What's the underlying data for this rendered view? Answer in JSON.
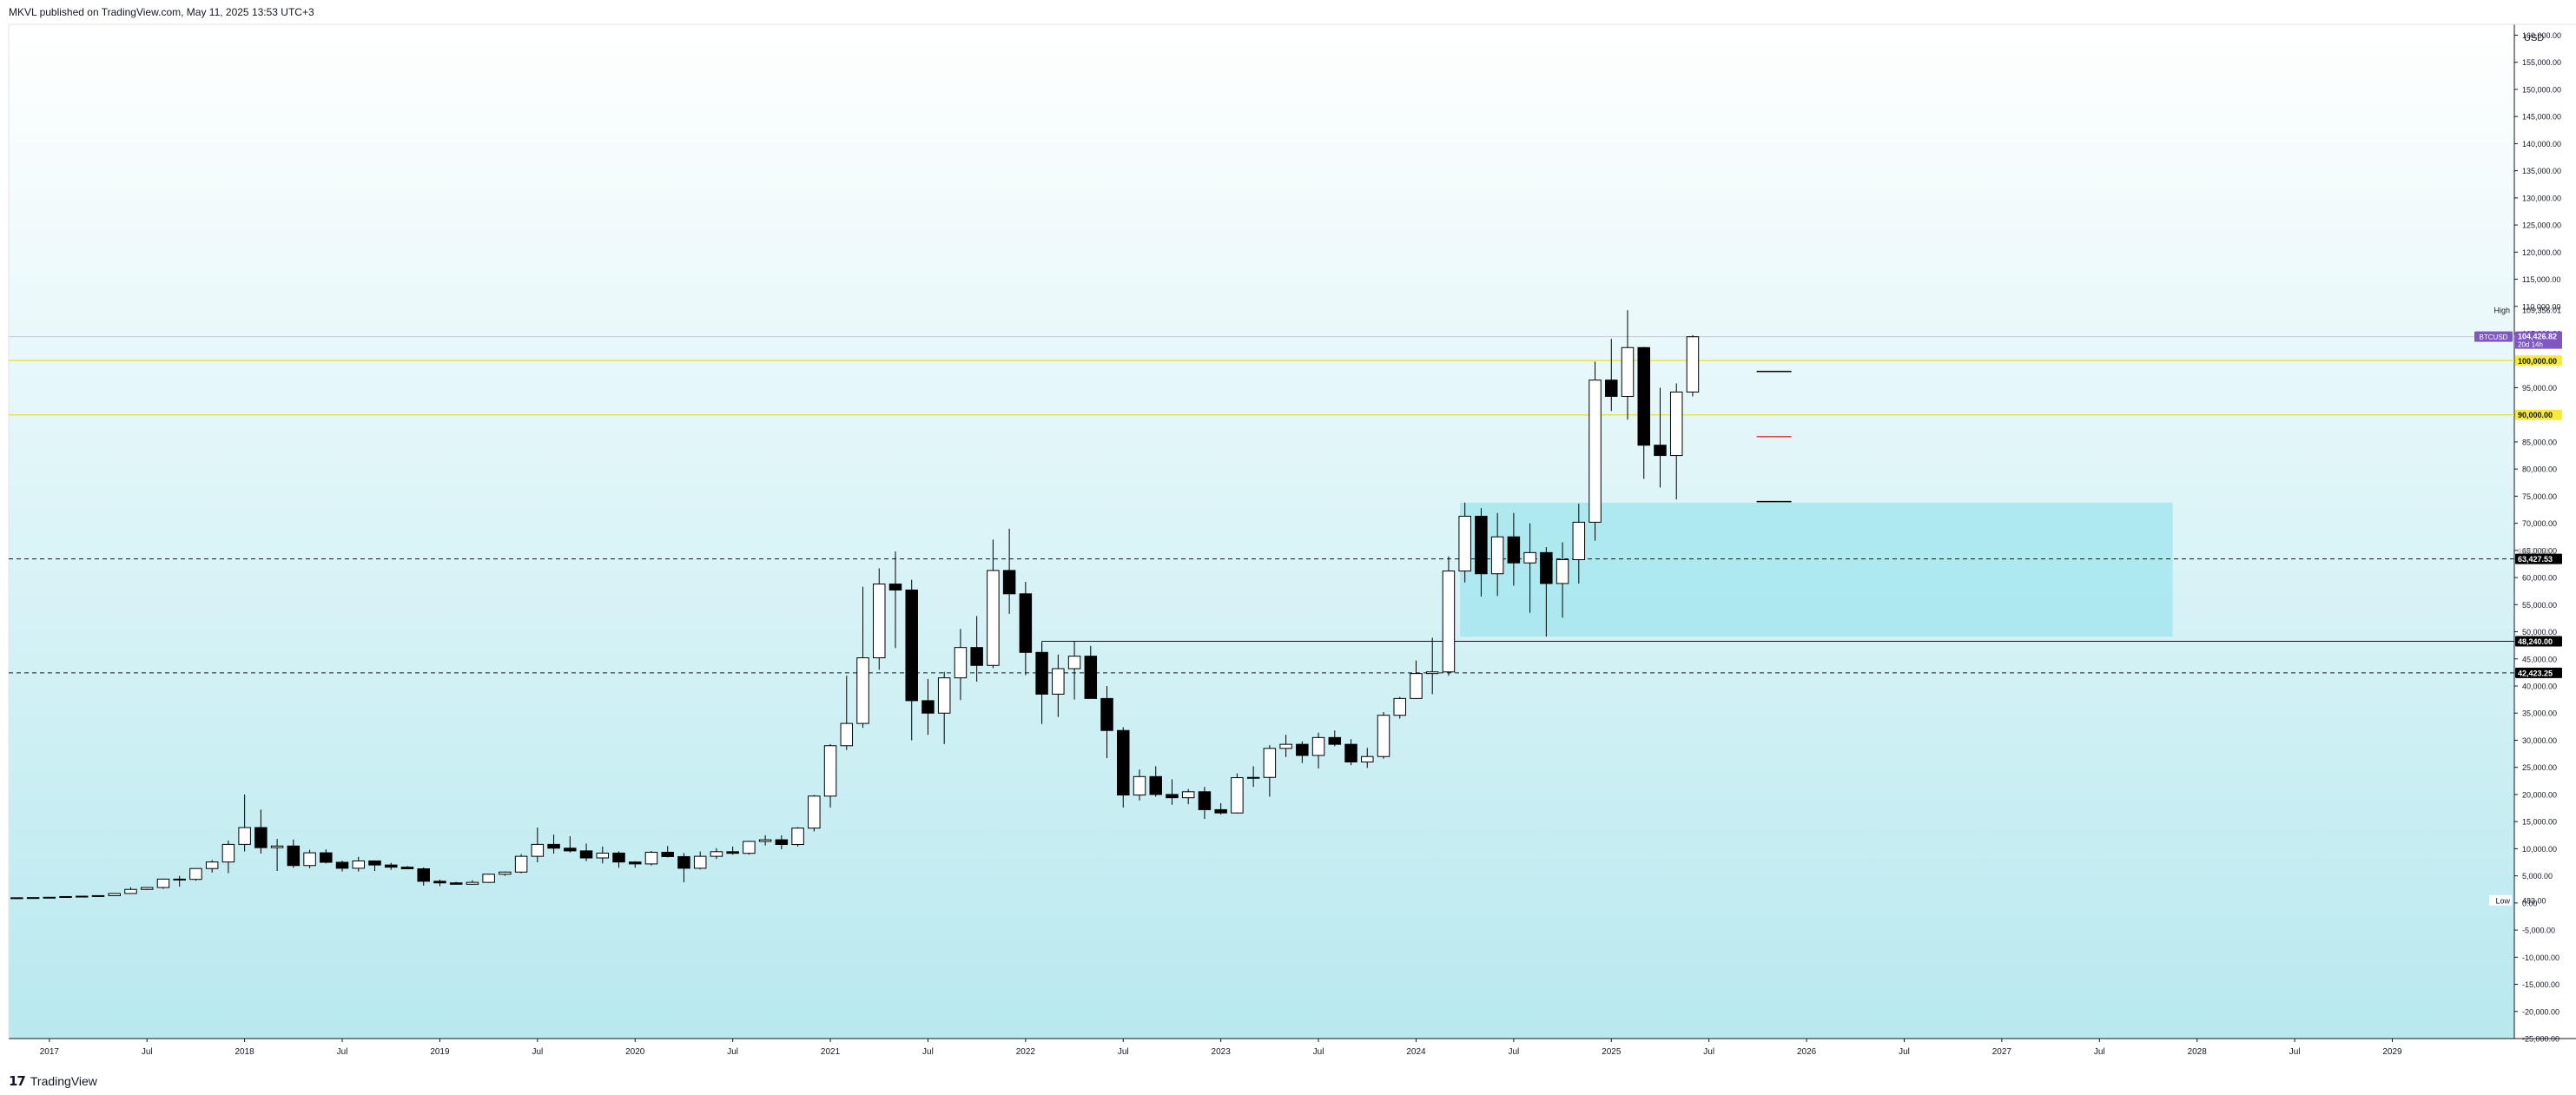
{
  "header": {
    "text": "MKVL published on TradingView.com, May 11, 2025 13:53 UTC+3"
  },
  "footer": {
    "brand": "TradingView",
    "logo_glyph": "17"
  },
  "colors": {
    "bg_top": "#ffffff",
    "bg_bottom": "#b8e9ef",
    "candle_up": "#ffffff",
    "candle_down": "#000000",
    "zone": "#a6e6ee",
    "yellow_line": "#f2e24a",
    "price_tag": "#7e57c2",
    "dark_tag": "#000000",
    "yellow_tag": "#f7ea3b",
    "target_red": "#e53935"
  },
  "chart_data": {
    "type": "candlestick",
    "currency": "USD",
    "ylim": [
      -25000,
      162000
    ],
    "y_ticks": [
      -25000,
      -20000,
      -15000,
      -10000,
      -5000,
      0,
      5000,
      10000,
      15000,
      20000,
      25000,
      30000,
      35000,
      40000,
      45000,
      50000,
      55000,
      60000,
      65000,
      70000,
      75000,
      80000,
      85000,
      90000,
      95000,
      100000,
      105000,
      110000,
      115000,
      120000,
      125000,
      130000,
      135000,
      140000,
      145000,
      150000,
      155000,
      160000
    ],
    "y_tick_labels": [
      "-25,000.00",
      "-20,000.00",
      "-15,000.00",
      "-10,000.00",
      "-5,000.00",
      "0.00",
      "5,000.00",
      "10,000.00",
      "15,000.00",
      "20,000.00",
      "25,000.00",
      "30,000.00",
      "35,000.00",
      "40,000.00",
      "45,000.00",
      "50,000.00",
      "55,000.00",
      "60,000.00",
      "65,000.00",
      "70,000.00",
      "75,000.00",
      "80,000.00",
      "85,000.00",
      "90,000.00",
      "95,000.00",
      "100,000.00",
      "105,000.00",
      "110,000.00",
      "115,000.00",
      "120,000.00",
      "125,000.00",
      "130,000.00",
      "135,000.00",
      "140,000.00",
      "145,000.00",
      "150,000.00",
      "155,000.00",
      "160,000.00"
    ],
    "x_labels": [
      {
        "month": 0,
        "label": "2017"
      },
      {
        "month": 6,
        "label": "Jul"
      },
      {
        "month": 12,
        "label": "2018"
      },
      {
        "month": 18,
        "label": "Jul"
      },
      {
        "month": 24,
        "label": "2019"
      },
      {
        "month": 30,
        "label": "Jul"
      },
      {
        "month": 36,
        "label": "2020"
      },
      {
        "month": 42,
        "label": "Jul"
      },
      {
        "month": 48,
        "label": "2021"
      },
      {
        "month": 54,
        "label": "Jul"
      },
      {
        "month": 60,
        "label": "2022"
      },
      {
        "month": 66,
        "label": "Jul"
      },
      {
        "month": 72,
        "label": "2023"
      },
      {
        "month": 78,
        "label": "Jul"
      },
      {
        "month": 84,
        "label": "2024"
      },
      {
        "month": 90,
        "label": "Jul"
      },
      {
        "month": 96,
        "label": "2025"
      },
      {
        "month": 102,
        "label": "Jul"
      },
      {
        "month": 108,
        "label": "2026"
      },
      {
        "month": 114,
        "label": "Jul"
      },
      {
        "month": 120,
        "label": "2027"
      },
      {
        "month": 126,
        "label": "Jul"
      },
      {
        "month": 132,
        "label": "2028"
      },
      {
        "month": 138,
        "label": "Jul"
      },
      {
        "month": 144,
        "label": "2029"
      }
    ],
    "x_range_months": [
      -2.5,
      151.5
    ],
    "first_month": -2,
    "candles": [
      [
        900,
        1000,
        850,
        960
      ],
      [
        960,
        1000,
        920,
        990
      ],
      [
        990,
        1090,
        900,
        1050
      ],
      [
        1050,
        1210,
        940,
        1180
      ],
      [
        1180,
        1300,
        1100,
        1250
      ],
      [
        1250,
        1380,
        1200,
        1350
      ],
      [
        1350,
        1800,
        1350,
        1750
      ],
      [
        1750,
        2900,
        1700,
        2500
      ],
      [
        2500,
        2900,
        2400,
        2850
      ],
      [
        2850,
        4500,
        2600,
        4400
      ],
      [
        4400,
        5000,
        3000,
        4350
      ],
      [
        4350,
        6400,
        4100,
        6350
      ],
      [
        6350,
        7900,
        5600,
        7550
      ],
      [
        7550,
        11500,
        5500,
        10800
      ],
      [
        10800,
        20000,
        9500,
        13900
      ],
      [
        13900,
        17200,
        9100,
        10200
      ],
      [
        10200,
        11800,
        5900,
        10500
      ],
      [
        10500,
        11700,
        6500,
        6900
      ],
      [
        6900,
        9800,
        6400,
        9250
      ],
      [
        9250,
        9900,
        7300,
        7500
      ],
      [
        7500,
        7800,
        5800,
        6400
      ],
      [
        6400,
        8500,
        5800,
        7750
      ],
      [
        7750,
        7800,
        5900,
        7000
      ],
      [
        7000,
        7400,
        6100,
        6600
      ],
      [
        6600,
        6800,
        6200,
        6300
      ],
      [
        6300,
        6550,
        3200,
        4000
      ],
      [
        4000,
        4300,
        3100,
        3700
      ],
      [
        3700,
        3900,
        3350,
        3450
      ],
      [
        3450,
        4200,
        3400,
        3800
      ],
      [
        3800,
        5400,
        3700,
        5300
      ],
      [
        5300,
        5800,
        5000,
        5700
      ],
      [
        5700,
        9000,
        5500,
        8600
      ],
      [
        8600,
        13900,
        7500,
        10800
      ],
      [
        10800,
        12600,
        9100,
        10100
      ],
      [
        10100,
        12300,
        9300,
        9600
      ],
      [
        9600,
        10950,
        7700,
        8300
      ],
      [
        8300,
        10400,
        7300,
        9200
      ],
      [
        9200,
        9500,
        6500,
        7550
      ],
      [
        7550,
        7700,
        6500,
        7200
      ],
      [
        7200,
        9600,
        6900,
        9350
      ],
      [
        9350,
        10500,
        8400,
        8550
      ],
      [
        8550,
        9200,
        3800,
        6400
      ],
      [
        6400,
        9500,
        6200,
        8600
      ],
      [
        8600,
        10100,
        8100,
        9450
      ],
      [
        9450,
        10400,
        8900,
        9150
      ],
      [
        9150,
        11450,
        8900,
        11350
      ],
      [
        11350,
        12500,
        10600,
        11650
      ],
      [
        11650,
        12480,
        9900,
        10780
      ],
      [
        10780,
        14000,
        10400,
        13800
      ],
      [
        13800,
        19900,
        13200,
        19700
      ],
      [
        19700,
        29300,
        17600,
        28990
      ],
      [
        28990,
        41900,
        28200,
        33100
      ],
      [
        33100,
        58300,
        32300,
        45200
      ],
      [
        45200,
        61700,
        43000,
        58800
      ],
      [
        58800,
        64800,
        47000,
        57700
      ],
      [
        57700,
        59600,
        30000,
        37300
      ],
      [
        37300,
        41300,
        31000,
        35000
      ],
      [
        35000,
        42600,
        29300,
        41500
      ],
      [
        41500,
        50500,
        37400,
        47100
      ],
      [
        47100,
        52900,
        40800,
        43800
      ],
      [
        43800,
        67000,
        43300,
        61300
      ],
      [
        61300,
        69000,
        53300,
        57000
      ],
      [
        57000,
        59200,
        42000,
        46200
      ],
      [
        46200,
        47900,
        33000,
        38500
      ],
      [
        38500,
        45800,
        34300,
        43200
      ],
      [
        43200,
        48200,
        37500,
        45500
      ],
      [
        45500,
        47400,
        37700,
        37700
      ],
      [
        37700,
        40000,
        26700,
        31800
      ],
      [
        31800,
        32400,
        17600,
        19900
      ],
      [
        19900,
        24600,
        18900,
        23300
      ],
      [
        23300,
        25200,
        19600,
        20000
      ],
      [
        20000,
        22800,
        18100,
        19400
      ],
      [
        19400,
        21000,
        18200,
        20500
      ],
      [
        20500,
        21400,
        15500,
        17200
      ],
      [
        17200,
        18400,
        16300,
        16600
      ],
      [
        16600,
        23900,
        16500,
        23100
      ],
      [
        23100,
        25200,
        21400,
        23150
      ],
      [
        23150,
        29100,
        19600,
        28500
      ],
      [
        28500,
        31000,
        26900,
        29250
      ],
      [
        29250,
        29800,
        25800,
        27200
      ],
      [
        27200,
        31400,
        24800,
        30500
      ],
      [
        30500,
        31800,
        28900,
        29250
      ],
      [
        29250,
        30200,
        25400,
        26000
      ],
      [
        26000,
        28600,
        24900,
        27000
      ],
      [
        27000,
        35200,
        26600,
        34600
      ],
      [
        34600,
        38000,
        34000,
        37700
      ],
      [
        37700,
        44700,
        37600,
        42300
      ],
      [
        42300,
        48900,
        38500,
        42600
      ],
      [
        42600,
        63900,
        41900,
        61200
      ],
      [
        61200,
        73800,
        59100,
        71300
      ],
      [
        71300,
        72800,
        56500,
        60700
      ],
      [
        60700,
        71900,
        56600,
        67500
      ],
      [
        67500,
        71900,
        58500,
        62700
      ],
      [
        62700,
        70000,
        53500,
        64600
      ],
      [
        64600,
        65600,
        49100,
        58900
      ],
      [
        58900,
        66500,
        52600,
        63300
      ],
      [
        63300,
        73600,
        58900,
        70200
      ],
      [
        70200,
        99800,
        66800,
        96400
      ],
      [
        96400,
        104000,
        90700,
        93400
      ],
      [
        93400,
        109300,
        89100,
        102400
      ],
      [
        102400,
        102500,
        78200,
        84400
      ],
      [
        84400,
        95000,
        76600,
        82500
      ],
      [
        82500,
        95800,
        74400,
        94200
      ],
      [
        94200,
        104700,
        93400,
        104400
      ]
    ],
    "levels": {
      "high": {
        "value": 109356.01,
        "label": "High",
        "price_label": "109,356.01"
      },
      "low": {
        "value": 483,
        "label": "Low",
        "price_label": "483.00"
      },
      "current": {
        "value": 104426.82,
        "symbol": "BTCUSD",
        "price_label": "104,426.82",
        "countdown": "20d 14h"
      },
      "yellow_100k": {
        "value": 100000,
        "price_label": "100,000.00"
      },
      "yellow_90k": {
        "value": 90000,
        "price_label": "90,000.00"
      },
      "dashed_63k": {
        "value": 63427.53,
        "price_label": "63,427.53",
        "ghost_label": "63,427.53"
      },
      "solid_48k": {
        "value": 48240,
        "price_label": "48,240.00",
        "from_month": 61
      },
      "dashed_42k": {
        "value": 42423.25,
        "price_label": "42,423.25"
      }
    },
    "zone": {
      "from_month": 86.7,
      "to_month": 130.5,
      "top": 73800,
      "bottom": 49100
    },
    "targets": [
      {
        "month": 106,
        "value": 98000,
        "color": "black"
      },
      {
        "month": 106,
        "value": 86000,
        "color": "red"
      },
      {
        "month": 106,
        "value": 74000,
        "color": "black"
      }
    ]
  }
}
